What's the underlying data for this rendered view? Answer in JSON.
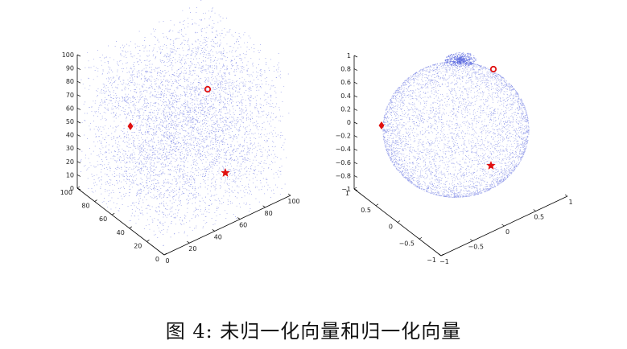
{
  "caption": "图 4: 未归一化向量和归一化向量",
  "colors": {
    "points": "#2b3dd6",
    "markers": "#e01010",
    "axis": "#000000"
  },
  "chart_data": [
    {
      "type": "scatter",
      "projection": "3d",
      "title": "",
      "z_ticks": [
        "0",
        "10",
        "20",
        "30",
        "40",
        "50",
        "60",
        "70",
        "80",
        "90",
        "100"
      ],
      "x_ticks": [
        "0",
        "20",
        "40",
        "60",
        "80",
        "100"
      ],
      "y_ticks": [
        "0",
        "20",
        "40",
        "60",
        "80",
        "100"
      ],
      "xlim": [
        0,
        100
      ],
      "ylim": [
        0,
        100
      ],
      "zlim": [
        0,
        100
      ],
      "point_cloud": "uniform random vectors in [0,100]^3 (dense blue dots)",
      "markers": [
        {
          "shape": "circle",
          "label": "",
          "z_approx": 73
        },
        {
          "shape": "diamond",
          "label": "",
          "z_approx": 46
        },
        {
          "shape": "star",
          "label": "",
          "z_approx": 12
        }
      ]
    },
    {
      "type": "scatter",
      "projection": "3d",
      "title": "",
      "z_ticks": [
        "1",
        "0.8",
        "0.6",
        "0.4",
        "0.2",
        "0",
        "−0.2",
        "−0.4",
        "−0.6",
        "−0.8",
        "−1"
      ],
      "x_ticks": [
        "−1",
        "−0.5",
        "0",
        "0.5",
        "1"
      ],
      "y_ticks": [
        "1",
        "0.5",
        "0",
        "−0.5",
        "−1"
      ],
      "xlim": [
        -1,
        1
      ],
      "ylim": [
        -1,
        1
      ],
      "zlim": [
        -1,
        1
      ],
      "point_cloud": "normalized vectors on the unit sphere (dense blue dots)",
      "markers": [
        {
          "shape": "circle",
          "label": ""
        },
        {
          "shape": "diamond",
          "label": ""
        },
        {
          "shape": "star",
          "label": ""
        }
      ]
    }
  ]
}
